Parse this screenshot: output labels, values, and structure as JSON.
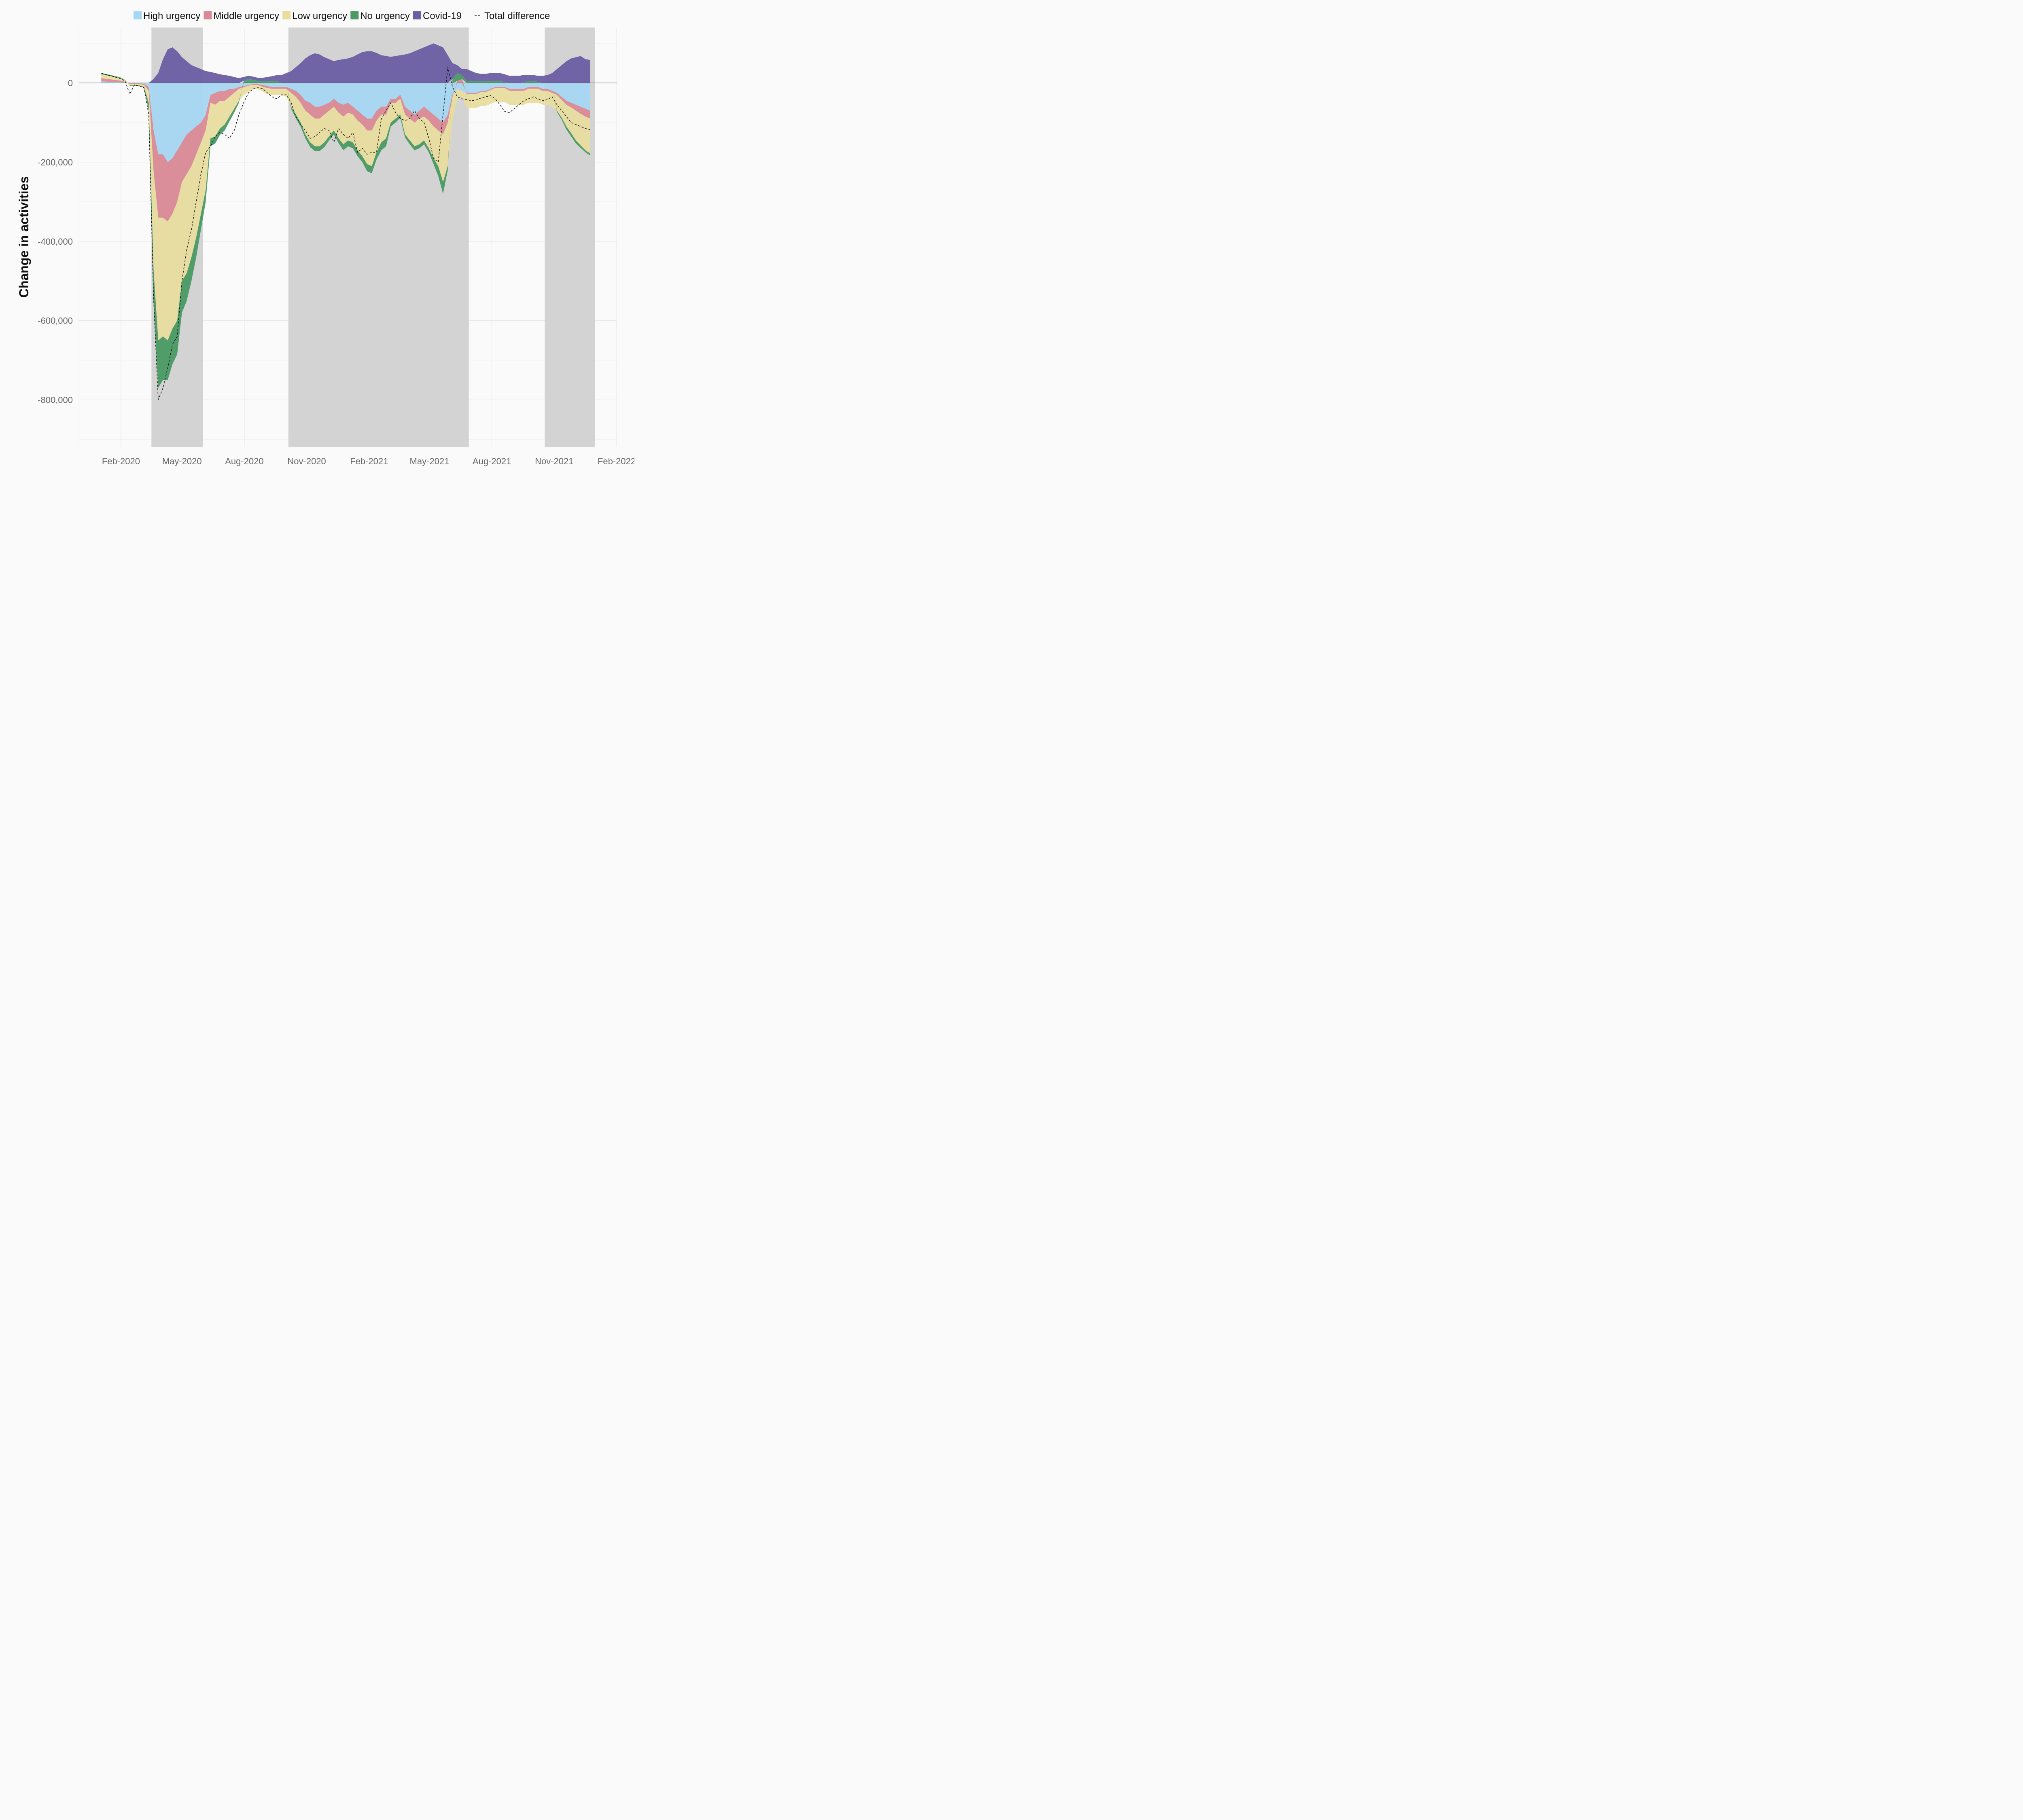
{
  "chart_data": {
    "type": "area",
    "title": "",
    "xlabel": "",
    "ylabel": "Change in  activities",
    "ylim": [
      -920000,
      140000
    ],
    "xlim": [
      "2019-12-01",
      "2022-02-01"
    ],
    "y_ticks": [
      0,
      -200000,
      -400000,
      -600000,
      -800000
    ],
    "y_tick_labels": [
      "0",
      "-200,000",
      "-400,000",
      "-600,000",
      "-800,000"
    ],
    "x_ticks": [
      "2020-02-01",
      "2020-05-01",
      "2020-08-01",
      "2020-11-01",
      "2021-02-01",
      "2021-05-01",
      "2021-08-01",
      "2021-11-01",
      "2022-02-01"
    ],
    "x_tick_labels": [
      "Feb-2020",
      "May-2020",
      "Aug-2020",
      "Nov-2020",
      "Feb-2021",
      "May-2021",
      "Aug-2021",
      "Nov-2021",
      "Feb-2022"
    ],
    "grid": true,
    "legend_position": "top",
    "shaded_periods": [
      [
        "2020-03-17",
        "2020-06-01"
      ],
      [
        "2020-10-05",
        "2021-06-28"
      ],
      [
        "2021-10-18",
        "2021-12-31"
      ]
    ],
    "x": [
      "2020-01-03",
      "2020-01-17",
      "2020-01-31",
      "2020-02-07",
      "2020-02-14",
      "2020-02-21",
      "2020-02-28",
      "2020-03-06",
      "2020-03-13",
      "2020-03-20",
      "2020-03-27",
      "2020-04-03",
      "2020-04-10",
      "2020-04-17",
      "2020-04-24",
      "2020-05-01",
      "2020-05-08",
      "2020-05-15",
      "2020-05-22",
      "2020-05-29",
      "2020-06-05",
      "2020-06-12",
      "2020-06-19",
      "2020-06-26",
      "2020-07-03",
      "2020-07-10",
      "2020-07-17",
      "2020-07-24",
      "2020-07-31",
      "2020-08-07",
      "2020-08-14",
      "2020-08-21",
      "2020-08-28",
      "2020-09-04",
      "2020-09-11",
      "2020-09-18",
      "2020-09-25",
      "2020-10-02",
      "2020-10-09",
      "2020-10-16",
      "2020-10-23",
      "2020-10-30",
      "2020-11-06",
      "2020-11-13",
      "2020-11-20",
      "2020-11-27",
      "2020-12-04",
      "2020-12-11",
      "2020-12-18",
      "2020-12-25",
      "2021-01-01",
      "2021-01-08",
      "2021-01-15",
      "2021-01-22",
      "2021-01-29",
      "2021-02-05",
      "2021-02-12",
      "2021-02-19",
      "2021-02-26",
      "2021-03-05",
      "2021-03-12",
      "2021-03-19",
      "2021-03-26",
      "2021-04-02",
      "2021-04-09",
      "2021-04-16",
      "2021-04-23",
      "2021-04-30",
      "2021-05-07",
      "2021-05-14",
      "2021-05-21",
      "2021-05-28",
      "2021-06-04",
      "2021-06-11",
      "2021-06-18",
      "2021-06-25",
      "2021-07-02",
      "2021-07-09",
      "2021-07-16",
      "2021-07-23",
      "2021-07-30",
      "2021-08-06",
      "2021-08-13",
      "2021-08-20",
      "2021-08-27",
      "2021-09-03",
      "2021-09-10",
      "2021-09-17",
      "2021-09-24",
      "2021-10-01",
      "2021-10-08",
      "2021-10-15",
      "2021-10-22",
      "2021-10-29",
      "2021-11-05",
      "2021-11-12",
      "2021-11-19",
      "2021-11-26",
      "2021-12-03",
      "2021-12-10",
      "2021-12-17",
      "2021-12-24"
    ],
    "series": [
      {
        "name": "High urgency",
        "color": "#a6d7f2",
        "values": [
          4000,
          3000,
          2000,
          1000,
          -1000,
          -1000,
          -1000,
          -2000,
          -10000,
          -120000,
          -180000,
          -180000,
          -200000,
          -190000,
          -170000,
          -150000,
          -130000,
          -120000,
          -110000,
          -100000,
          -80000,
          -30000,
          -25000,
          -20000,
          -20000,
          -15000,
          -15000,
          -10000,
          -8000,
          -5000,
          -3000,
          -3000,
          -5000,
          -8000,
          -10000,
          -10000,
          -10000,
          -10000,
          -15000,
          -20000,
          -30000,
          -45000,
          -50000,
          -60000,
          -60000,
          -55000,
          -50000,
          -40000,
          -50000,
          -55000,
          -50000,
          -60000,
          -70000,
          -80000,
          -90000,
          -90000,
          -70000,
          -60000,
          -60000,
          -40000,
          -40000,
          -30000,
          -60000,
          -70000,
          -80000,
          -70000,
          -60000,
          -70000,
          -80000,
          -90000,
          -100000,
          -80000,
          -30000,
          -15000,
          -20000,
          -25000,
          -25000,
          -25000,
          -20000,
          -20000,
          -15000,
          -10000,
          -10000,
          -10000,
          -15000,
          -15000,
          -15000,
          -15000,
          -10000,
          -10000,
          -10000,
          -15000,
          -15000,
          -20000,
          -25000,
          -35000,
          -45000,
          -50000,
          -55000,
          -60000,
          -65000,
          -70000
        ]
      },
      {
        "name": "Middle urgency",
        "color": "#d98a96",
        "values": [
          8000,
          6000,
          4000,
          2000,
          -2000,
          -2000,
          -2000,
          -3000,
          -10000,
          -100000,
          -160000,
          -160000,
          -150000,
          -140000,
          -130000,
          -100000,
          -100000,
          -90000,
          -70000,
          -50000,
          -40000,
          -20000,
          -30000,
          -25000,
          -25000,
          -20000,
          -10000,
          -5000,
          -3000,
          -2000,
          -2000,
          -2000,
          -5000,
          -5000,
          -5000,
          -5000,
          -5000,
          -5000,
          -10000,
          -15000,
          -20000,
          -25000,
          -30000,
          -30000,
          -30000,
          -25000,
          -20000,
          -20000,
          -25000,
          -30000,
          -25000,
          -20000,
          -25000,
          -25000,
          -30000,
          -30000,
          -25000,
          -20000,
          -20000,
          -10000,
          -10000,
          -10000,
          -20000,
          -20000,
          -20000,
          -20000,
          -25000,
          -25000,
          -30000,
          -30000,
          -30000,
          -20000,
          -5000,
          5000,
          10000,
          -3000,
          -3000,
          -3000,
          -3000,
          -3000,
          -3000,
          -3000,
          -3000,
          -3000,
          -5000,
          -5000,
          -5000,
          -5000,
          -5000,
          -5000,
          -5000,
          -5000,
          -5000,
          -5000,
          -5000,
          -8000,
          -10000,
          -12000,
          -15000,
          -18000,
          -20000,
          -20000
        ]
      },
      {
        "name": "Low urgency",
        "color": "#e8dc9e",
        "values": [
          10000,
          8000,
          6000,
          4000,
          -3000,
          -3000,
          -3000,
          -5000,
          -30000,
          -250000,
          -310000,
          -300000,
          -300000,
          -290000,
          -300000,
          -250000,
          -250000,
          -230000,
          -210000,
          -180000,
          -150000,
          -90000,
          -80000,
          -70000,
          -60000,
          -50000,
          -40000,
          -30000,
          -20000,
          -15000,
          -10000,
          -10000,
          -12000,
          -15000,
          -15000,
          -15000,
          -15000,
          -20000,
          -35000,
          -45000,
          -50000,
          -60000,
          -70000,
          -70000,
          -70000,
          -70000,
          -65000,
          -60000,
          -65000,
          -70000,
          -70000,
          -70000,
          -75000,
          -80000,
          -85000,
          -90000,
          -80000,
          -70000,
          -60000,
          -50000,
          -40000,
          -40000,
          -50000,
          -55000,
          -60000,
          -65000,
          -60000,
          -70000,
          -80000,
          -90000,
          -120000,
          -110000,
          -60000,
          -25000,
          -15000,
          -35000,
          -35000,
          -35000,
          -35000,
          -35000,
          -35000,
          -35000,
          -35000,
          -35000,
          -35000,
          -35000,
          -35000,
          -35000,
          -35000,
          -35000,
          -35000,
          -35000,
          -35000,
          -35000,
          -40000,
          -45000,
          -55000,
          -65000,
          -75000,
          -80000,
          -85000,
          -88000
        ]
      },
      {
        "name": "No urgency",
        "color": "#4a9a64",
        "values": [
          3000,
          3000,
          2000,
          1000,
          -1000,
          -1000,
          -1000,
          -2000,
          -20000,
          -80000,
          -120000,
          -110000,
          -100000,
          -90000,
          -85000,
          -80000,
          -70000,
          -60000,
          -50000,
          -40000,
          -30000,
          -20000,
          -18000,
          -16000,
          -15000,
          -12000,
          -10000,
          -5000,
          5000,
          10000,
          8000,
          5000,
          5000,
          5000,
          5000,
          5000,
          0,
          0,
          -5000,
          -10000,
          -10000,
          -10000,
          -12000,
          -12000,
          -12000,
          -12000,
          -10000,
          -10000,
          -12000,
          -15000,
          -15000,
          -15000,
          -15000,
          -15000,
          -18000,
          -18000,
          -18000,
          -20000,
          -20000,
          -10000,
          -10000,
          -8000,
          -8000,
          -10000,
          -10000,
          -10000,
          -10000,
          -10000,
          -15000,
          -25000,
          -30000,
          -10000,
          10000,
          20000,
          10000,
          5000,
          5000,
          5000,
          5000,
          5000,
          5000,
          5000,
          5000,
          2000,
          0,
          0,
          0,
          2000,
          5000,
          5000,
          3000,
          0,
          0,
          0,
          -3000,
          -5000,
          -8000,
          -8000,
          -8000,
          -6000,
          -5000,
          -5000
        ]
      },
      {
        "name": "Covid-19",
        "color": "#6a5ea3",
        "values": [
          0,
          0,
          0,
          0,
          0,
          0,
          0,
          0,
          0,
          10000,
          25000,
          60000,
          85000,
          90000,
          80000,
          65000,
          55000,
          45000,
          40000,
          35000,
          30000,
          28000,
          25000,
          22000,
          20000,
          18000,
          15000,
          12000,
          10000,
          8000,
          8000,
          8000,
          8000,
          10000,
          12000,
          15000,
          20000,
          25000,
          30000,
          40000,
          50000,
          62000,
          70000,
          75000,
          72000,
          65000,
          60000,
          55000,
          58000,
          60000,
          62000,
          66000,
          72000,
          78000,
          80000,
          80000,
          76000,
          70000,
          68000,
          66000,
          68000,
          70000,
          72000,
          75000,
          80000,
          85000,
          90000,
          95000,
          100000,
          95000,
          90000,
          70000,
          40000,
          20000,
          15000,
          30000,
          25000,
          20000,
          18000,
          18000,
          20000,
          20000,
          20000,
          20000,
          18000,
          18000,
          18000,
          18000,
          15000,
          15000,
          15000,
          18000,
          20000,
          25000,
          35000,
          45000,
          55000,
          62000,
          65000,
          68000,
          60000,
          58000
        ]
      }
    ],
    "total_difference": {
      "name": "Total difference",
      "values": [
        25000,
        18000,
        11000,
        5000,
        -28000,
        -5000,
        -8000,
        -12000,
        -80000,
        -540000,
        -800000,
        -770000,
        -720000,
        -660000,
        -640000,
        -500000,
        -420000,
        -370000,
        -300000,
        -230000,
        -175000,
        -160000,
        -135000,
        -125000,
        -130000,
        -140000,
        -120000,
        -80000,
        -50000,
        -25000,
        -15000,
        -12000,
        -14000,
        -25000,
        -35000,
        -40000,
        -30000,
        -30000,
        -50000,
        -85000,
        -105000,
        -120000,
        -140000,
        -135000,
        -125000,
        -115000,
        -120000,
        -150000,
        -115000,
        -130000,
        -140000,
        -125000,
        -175000,
        -165000,
        -180000,
        -175000,
        -175000,
        -90000,
        -70000,
        -50000,
        -75000,
        -90000,
        -95000,
        -90000,
        -70000,
        -90000,
        -100000,
        -140000,
        -190000,
        -200000,
        -80000,
        40000,
        -10000,
        -35000,
        -40000,
        -42000,
        -45000,
        -43000,
        -38000,
        -35000,
        -32000,
        -40000,
        -55000,
        -72000,
        -75000,
        -65000,
        -55000,
        -45000,
        -40000,
        -35000,
        -40000,
        -45000,
        -42000,
        -35000,
        -55000,
        -70000,
        -85000,
        -100000,
        -105000,
        -110000,
        -115000,
        -118000
      ]
    }
  },
  "legend": {
    "items": [
      {
        "label": "High urgency",
        "color": "#a6d7f2"
      },
      {
        "label": "Middle urgency",
        "color": "#d98a96"
      },
      {
        "label": "Low urgency",
        "color": "#e8dc9e"
      },
      {
        "label": "No urgency",
        "color": "#4a9a64"
      },
      {
        "label": "Covid-19",
        "color": "#6a5ea3"
      }
    ],
    "line_label": "Total difference"
  }
}
